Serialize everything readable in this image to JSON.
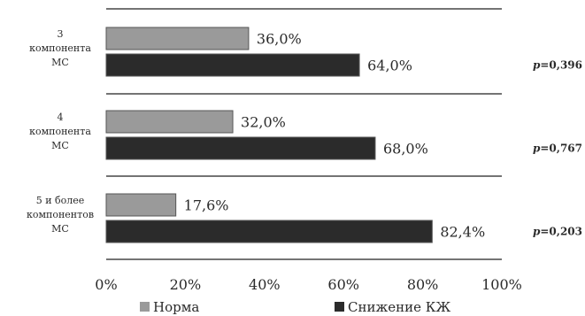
{
  "chart_data": {
    "type": "bar",
    "orientation": "horizontal",
    "categories": [
      [
        "3",
        "компонента",
        "МС"
      ],
      [
        "4",
        "компонента",
        "МС"
      ],
      [
        "5 и более",
        "компонентов",
        "МС"
      ]
    ],
    "series": [
      {
        "name": "Норма",
        "values": [
          36.0,
          32.0,
          17.6
        ],
        "value_labels": [
          "36,0%",
          "32,0%",
          "17,6%"
        ],
        "color": "#9a9a9a"
      },
      {
        "name": "Снижение КЖ",
        "values": [
          64.0,
          68.0,
          82.4
        ],
        "value_labels": [
          "64,0%",
          "68,0%",
          "82,4%"
        ],
        "color": "#2b2b2b"
      }
    ],
    "annotations": [
      {
        "prefix": "p",
        "value": "=0,396"
      },
      {
        "prefix": "p",
        "value": "=0,767"
      },
      {
        "prefix": "p",
        "value": "=0,203"
      }
    ],
    "x_ticks": [
      "0%",
      "20%",
      "40%",
      "60%",
      "80%",
      "100%"
    ],
    "xlim": [
      0,
      100
    ],
    "grid": false,
    "legend_position": "bottom"
  }
}
